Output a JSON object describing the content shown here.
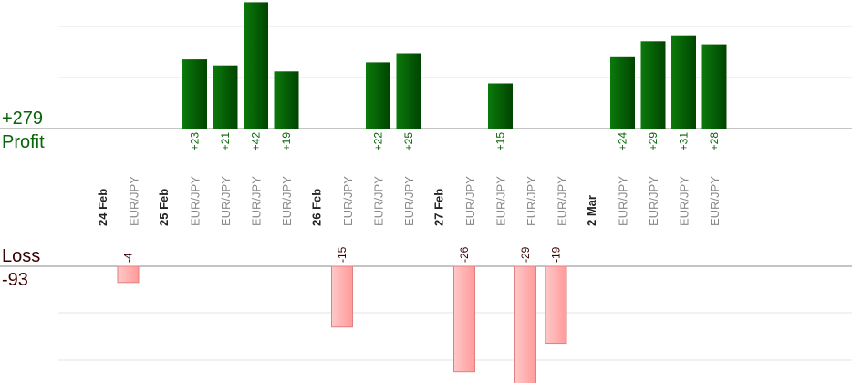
{
  "summary": {
    "profit_total": "+279",
    "profit_label": "Profit",
    "loss_label": "Loss",
    "loss_total": "-93"
  },
  "colors": {
    "profit_bar": "#0b6b0b",
    "profit_bar_dark": "#004400",
    "loss_bar": "#ffaaaa",
    "loss_border": "#e08080",
    "profit_text": "#0a640a",
    "loss_text": "#3a0000",
    "pair_text": "#888888",
    "axis": "#888888",
    "grid": "#e6e6e6"
  },
  "chart_data": {
    "type": "bar",
    "columns": [
      {
        "kind": "date",
        "label": "24 Feb"
      },
      {
        "kind": "trade",
        "pair": "EUR/JPY",
        "value": -4
      },
      {
        "kind": "date",
        "label": "25 Feb"
      },
      {
        "kind": "trade",
        "pair": "EUR/JPY",
        "value": 23
      },
      {
        "kind": "trade",
        "pair": "EUR/JPY",
        "value": 21
      },
      {
        "kind": "trade",
        "pair": "EUR/JPY",
        "value": 42
      },
      {
        "kind": "trade",
        "pair": "EUR/JPY",
        "value": 19
      },
      {
        "kind": "date",
        "label": "26 Feb"
      },
      {
        "kind": "trade",
        "pair": "EUR/JPY",
        "value": -15
      },
      {
        "kind": "trade",
        "pair": "EUR/JPY",
        "value": 22
      },
      {
        "kind": "trade",
        "pair": "EUR/JPY",
        "value": 25
      },
      {
        "kind": "date",
        "label": "27 Feb"
      },
      {
        "kind": "trade",
        "pair": "EUR/JPY",
        "value": -26
      },
      {
        "kind": "trade",
        "pair": "EUR/JPY",
        "value": 15
      },
      {
        "kind": "trade",
        "pair": "EUR/JPY",
        "value": -29
      },
      {
        "kind": "trade",
        "pair": "EUR/JPY",
        "value": -19
      },
      {
        "kind": "date",
        "label": "2 Mar"
      },
      {
        "kind": "trade",
        "pair": "EUR/JPY",
        "value": 24
      },
      {
        "kind": "trade",
        "pair": "EUR/JPY",
        "value": 29
      },
      {
        "kind": "trade",
        "pair": "EUR/JPY",
        "value": 31
      },
      {
        "kind": "trade",
        "pair": "EUR/JPY",
        "value": 28
      }
    ],
    "grid": true
  }
}
